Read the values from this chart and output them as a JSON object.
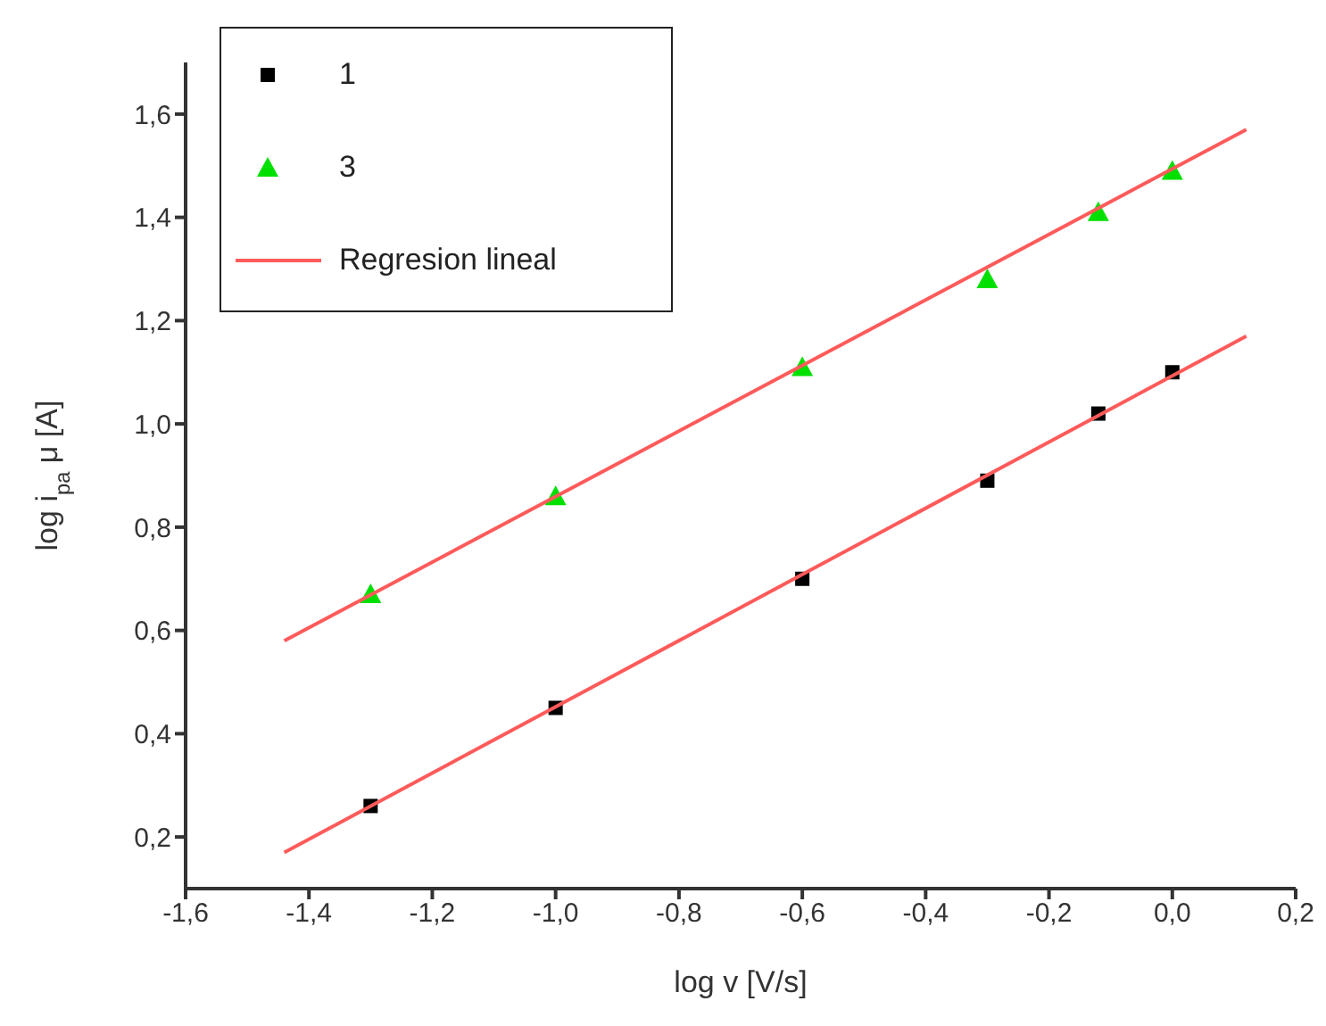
{
  "chart_data": {
    "type": "scatter",
    "xlabel": "log v [V/s]",
    "ylabel": "log i$_{pa}$ μ [A]",
    "xlim": [
      -1.6,
      0.2
    ],
    "ylim": [
      0.1,
      1.7
    ],
    "xticks": [
      {
        "value": -1.6,
        "label": "-1,6"
      },
      {
        "value": -1.4,
        "label": "-1,4"
      },
      {
        "value": -1.2,
        "label": "-1,2"
      },
      {
        "value": -1.0,
        "label": "-1,0"
      },
      {
        "value": -0.8,
        "label": "-0,8"
      },
      {
        "value": -0.6,
        "label": "-0,6"
      },
      {
        "value": -0.4,
        "label": "-0,4"
      },
      {
        "value": -0.2,
        "label": "-0,2"
      },
      {
        "value": 0.0,
        "label": "0,0"
      },
      {
        "value": 0.2,
        "label": "0,2"
      }
    ],
    "yticks": [
      {
        "value": 0.2,
        "label": "0,2"
      },
      {
        "value": 0.4,
        "label": "0,4"
      },
      {
        "value": 0.6,
        "label": "0,6"
      },
      {
        "value": 0.8,
        "label": "0,8"
      },
      {
        "value": 1.0,
        "label": "1,0"
      },
      {
        "value": 1.2,
        "label": "1,2"
      },
      {
        "value": 1.4,
        "label": "1,4"
      },
      {
        "value": 1.6,
        "label": "1,6"
      }
    ],
    "grid": false,
    "legend": "top left",
    "series": [
      {
        "name": "1",
        "marker": "square",
        "color": "#000000",
        "x": [
          -1.3,
          -1.0,
          -0.6,
          -0.3,
          -0.12,
          0.0
        ],
        "values": [
          0.26,
          0.45,
          0.7,
          0.89,
          1.02,
          1.1
        ]
      },
      {
        "name": "3",
        "marker": "triangle",
        "color": "#00e000",
        "x": [
          -1.3,
          -1.0,
          -0.6,
          -0.3,
          -0.12,
          0.0
        ],
        "values": [
          0.67,
          0.86,
          1.11,
          1.28,
          1.41,
          1.49
        ]
      },
      {
        "name": "Regresion lineal",
        "type": "line",
        "marker": "none",
        "color": "#ff5a5a",
        "x": [
          -1.44,
          0.12
        ],
        "values": [
          0.17,
          1.17
        ]
      },
      {
        "type": "line",
        "marker": "none",
        "color": "#ff5a5a",
        "x": [
          -1.44,
          0.12
        ],
        "values": [
          0.58,
          1.57
        ]
      }
    ]
  }
}
